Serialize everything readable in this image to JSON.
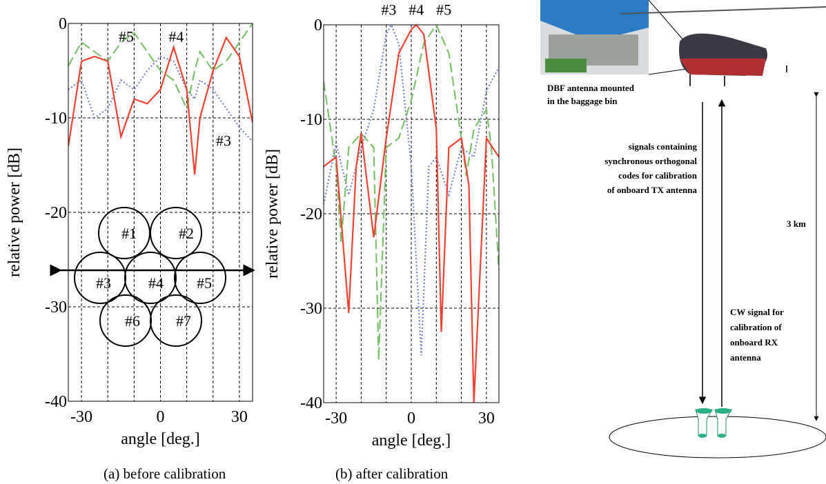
{
  "chart_data": [
    {
      "type": "line",
      "xlabel": "angle [deg.]",
      "ylabel": "relative power [dB]",
      "xlim": [
        -35,
        35
      ],
      "ylim": [
        -40,
        0
      ],
      "xticks": [
        -30,
        0,
        30
      ],
      "yticks": [
        0,
        -10,
        -20,
        -30,
        -40
      ],
      "xgrid": [
        -30,
        -20,
        -10,
        0,
        10,
        20,
        30
      ],
      "grid": true,
      "annotations": [
        "#5",
        "#4",
        "#3"
      ],
      "beam_labels": [
        "#1",
        "#2",
        "#3",
        "#4",
        "#5",
        "#6",
        "#7"
      ],
      "series": [
        {
          "color": "#7ac36a",
          "style": "dashed",
          "x": [
            -35,
            -30,
            -25,
            -20,
            -15,
            -10,
            -5,
            0,
            5,
            10,
            13,
            15,
            20,
            25,
            30,
            35
          ],
          "values": [
            -4.5,
            -2,
            -3,
            -4,
            -2,
            -1,
            -3,
            -5,
            -6,
            -9,
            -5,
            -3,
            -5,
            -4,
            -2,
            0
          ]
        },
        {
          "color": "#7080d0",
          "style": "dotted",
          "x": [
            -35,
            -30,
            -25,
            -20,
            -15,
            -10,
            -5,
            0,
            5,
            10,
            13,
            15,
            20,
            25,
            30,
            35
          ],
          "values": [
            -7,
            -6,
            -10,
            -9,
            -6,
            -7,
            -5,
            -3.5,
            -4,
            -7,
            -8,
            -6,
            -7,
            -9,
            -11,
            -12.5
          ]
        },
        {
          "color": "#f04030",
          "style": "solid",
          "x": [
            -35,
            -30,
            -25,
            -20,
            -15,
            -10,
            -5,
            0,
            5,
            10,
            13,
            15,
            20,
            25,
            30,
            35
          ],
          "values": [
            -13,
            -4,
            -3.5,
            -4,
            -12,
            -8,
            -8.5,
            -7,
            -2.5,
            -7,
            -16,
            -10,
            -5,
            -1.5,
            -3.5,
            -10.5
          ]
        }
      ]
    },
    {
      "type": "line",
      "xlabel": "angle [deg.]",
      "ylabel": "relative power [dB]",
      "xlim": [
        -35,
        35
      ],
      "ylim": [
        -40,
        0
      ],
      "xticks": [
        -30,
        0,
        30
      ],
      "yticks": [
        0,
        -10,
        -20,
        -30,
        -40
      ],
      "xgrid": [
        -30,
        -20,
        -10,
        0,
        10,
        20,
        30
      ],
      "grid": true,
      "annotations": [
        "#3",
        "#4",
        "#5"
      ],
      "series": [
        {
          "color": "#7ac36a",
          "style": "dashed",
          "x": [
            -35,
            -30,
            -28,
            -25,
            -20,
            -15,
            -13,
            -10,
            -5,
            0,
            5,
            10,
            15,
            20,
            22,
            25,
            30,
            32,
            35
          ],
          "values": [
            -6,
            -15,
            -23,
            -13,
            -11.5,
            -13,
            -35.5,
            -13,
            -12,
            -8,
            -2,
            0,
            -3,
            -12,
            -16,
            -11,
            -9,
            -13,
            -26
          ]
        },
        {
          "color": "#7080d0",
          "style": "dotted",
          "x": [
            -35,
            -30,
            -25,
            -20,
            -15,
            -10,
            -8,
            -5,
            0,
            4,
            7,
            10,
            15,
            20,
            25,
            30,
            35
          ],
          "values": [
            -19,
            -12.5,
            -18,
            -13,
            -9,
            -1,
            0,
            -2,
            -15,
            -35,
            -15,
            -14,
            -18,
            -13,
            -14,
            -7,
            -4.5
          ]
        },
        {
          "color": "#f04030",
          "style": "solid",
          "x": [
            -35,
            -30,
            -25,
            -22,
            -20,
            -15,
            -10,
            -5,
            0,
            2,
            5,
            10,
            12,
            15,
            20,
            23,
            25,
            30,
            35
          ],
          "values": [
            -15,
            -14,
            -30.5,
            -15,
            -11.5,
            -22.5,
            -12,
            -3,
            -0.5,
            0,
            -1,
            -11,
            -32.5,
            -13,
            -12,
            -17,
            -40,
            -12,
            -14
          ]
        }
      ]
    }
  ],
  "captions": [
    "(a) before calibration",
    "(b) after calibration"
  ],
  "diagram": {
    "antenna_label": [
      "DBF antenna mounted",
      "in the baggage bin"
    ],
    "tx_label": [
      "signals containing",
      "synchronous orthogonal",
      "codes for calibration",
      "of onboard TX antenna"
    ],
    "rx_label": [
      "CW signal for",
      "calibration of",
      "onboard RX",
      "antenna"
    ],
    "distance": "3 km"
  }
}
